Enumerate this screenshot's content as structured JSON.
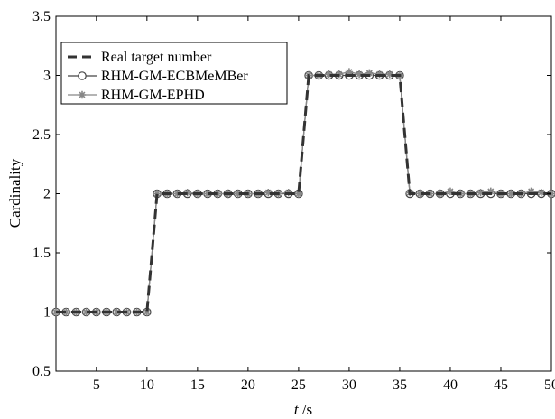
{
  "chart_data": {
    "type": "line",
    "xlabel": "t /s",
    "xlabel_italic_part": "t",
    "xlabel_unit_part": " /s",
    "ylabel": "Cardinality",
    "xlim": [
      1,
      50
    ],
    "ylim": [
      0.5,
      3.5
    ],
    "xticks": [
      5,
      10,
      15,
      20,
      25,
      30,
      35,
      40,
      45,
      50
    ],
    "yticks": [
      0.5,
      1,
      1.5,
      2,
      2.5,
      3,
      3.5
    ],
    "grid": false,
    "legend_position": "top-left",
    "x": [
      1,
      2,
      3,
      4,
      5,
      6,
      7,
      8,
      9,
      10,
      11,
      12,
      13,
      14,
      15,
      16,
      17,
      18,
      19,
      20,
      21,
      22,
      23,
      24,
      25,
      26,
      27,
      28,
      29,
      30,
      31,
      32,
      33,
      34,
      35,
      36,
      37,
      38,
      39,
      40,
      41,
      42,
      43,
      44,
      45,
      46,
      47,
      48,
      49,
      50
    ],
    "series": [
      {
        "name": "Real target number",
        "style": "dashed",
        "color": "#333333",
        "marker": "none",
        "values": [
          1,
          1,
          1,
          1,
          1,
          1,
          1,
          1,
          1,
          1,
          2,
          2,
          2,
          2,
          2,
          2,
          2,
          2,
          2,
          2,
          2,
          2,
          2,
          2,
          2,
          3,
          3,
          3,
          3,
          3,
          3,
          3,
          3,
          3,
          3,
          2,
          2,
          2,
          2,
          2,
          2,
          2,
          2,
          2,
          2,
          2,
          2,
          2,
          2,
          2
        ]
      },
      {
        "name": "RHM-GM-ECBMeMBer",
        "style": "solid",
        "color": "#444444",
        "marker": "circle",
        "values": [
          1,
          1,
          1,
          1,
          1,
          1,
          1,
          1,
          1,
          1,
          2,
          2,
          2,
          2,
          2,
          2,
          2,
          2,
          2,
          2,
          2,
          2,
          2,
          2,
          2,
          3,
          3,
          3,
          3,
          3,
          3,
          3,
          3,
          3,
          3,
          2,
          2,
          2,
          2,
          2,
          2,
          2,
          2,
          2,
          2,
          2,
          2,
          2,
          2,
          2
        ]
      },
      {
        "name": "RHM-GM-EPHD",
        "style": "solid",
        "color": "#888888",
        "marker": "star",
        "values": [
          1,
          1,
          1,
          1,
          1,
          1,
          1,
          1,
          1,
          1,
          2,
          2,
          2,
          2.01,
          2,
          2,
          2,
          2,
          2,
          2,
          2,
          2.01,
          2,
          2.01,
          2,
          3,
          3,
          3.01,
          3.01,
          3.03,
          3.01,
          3.02,
          3.01,
          3.01,
          3,
          2.01,
          2,
          2,
          2,
          2.02,
          2,
          2,
          2.01,
          2.02,
          2,
          2,
          2,
          2.02,
          2.01,
          2
        ]
      }
    ]
  }
}
